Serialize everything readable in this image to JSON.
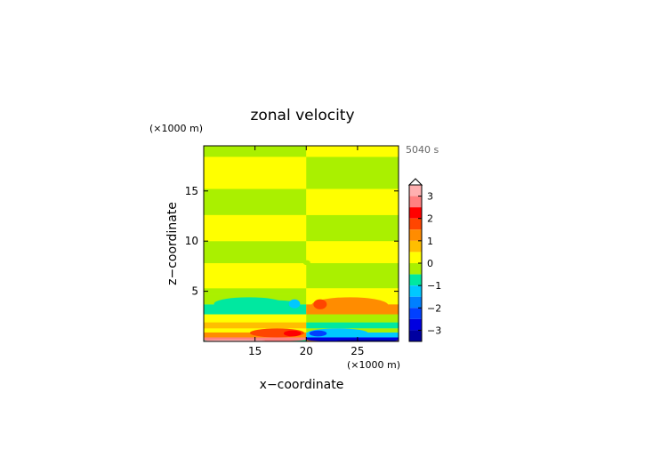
{
  "chart_data": {
    "type": "heatmap",
    "title": "zonal velocity",
    "xlabel": "x−coordinate",
    "ylabel": "z−coordinate",
    "x_unit": "(×1000 m)",
    "y_unit": "(×1000 m)",
    "time_label": "5040 s",
    "xlim": [
      10,
      29
    ],
    "ylim": [
      0,
      19.5
    ],
    "x_ticks": [
      15,
      20,
      25
    ],
    "y_ticks": [
      5,
      10,
      15
    ],
    "x_tick_labels": [
      "15",
      "20",
      "25"
    ],
    "y_tick_labels": [
      "5",
      "10",
      "15"
    ],
    "colorbar": {
      "ticks": [
        3,
        2,
        1,
        0,
        -1,
        -2,
        -3
      ],
      "tick_labels": [
        "3",
        "2",
        "1",
        "0",
        "−1",
        "−2",
        "−3"
      ],
      "range": [
        -3.5,
        3.5
      ],
      "extend": "max",
      "levels": [
        {
          "value": 3.25,
          "color": "#ffb0b0"
        },
        {
          "value": 2.75,
          "color": "#ff8080"
        },
        {
          "value": 2.25,
          "color": "#ff0000"
        },
        {
          "value": 1.75,
          "color": "#ff4500"
        },
        {
          "value": 1.25,
          "color": "#ff8c00"
        },
        {
          "value": 0.75,
          "color": "#ffbe00"
        },
        {
          "value": 0.25,
          "color": "#ffff00"
        },
        {
          "value": -0.25,
          "color": "#aaf000"
        },
        {
          "value": -0.75,
          "color": "#00e8a0"
        },
        {
          "value": -1.25,
          "color": "#00c8ff"
        },
        {
          "value": -1.75,
          "color": "#0080ff"
        },
        {
          "value": -2.25,
          "color": "#0040ff"
        },
        {
          "value": -2.75,
          "color": "#0000e0"
        },
        {
          "value": -3.25,
          "color": "#0000a0"
        }
      ]
    },
    "bands": [
      {
        "z": [
          0.0,
          0.15
        ],
        "left": -1.0,
        "right": 1.0
      },
      {
        "z": [
          0.15,
          0.4
        ],
        "left": 2.5,
        "right": -2.8
      },
      {
        "z": [
          0.4,
          0.9
        ],
        "left": 1.0,
        "right": -1.5
      },
      {
        "z": [
          0.9,
          1.3
        ],
        "left": 0.3,
        "right": -0.3
      },
      {
        "z": [
          1.3,
          1.9
        ],
        "left": 0.7,
        "right": -0.7
      },
      {
        "z": [
          1.9,
          2.7
        ],
        "left": 0.3,
        "right": -0.3
      },
      {
        "z": [
          2.7,
          3.7
        ],
        "left": -1.0,
        "right": 1.0
      },
      {
        "z": [
          3.7,
          4.7
        ],
        "left": -0.3,
        "right": 0.3
      },
      {
        "z": [
          4.7,
          5.3
        ],
        "left": -0.3,
        "right": 0.3
      },
      {
        "z": [
          5.3,
          7.8
        ],
        "left": 0.3,
        "right": -0.3
      },
      {
        "z": [
          7.8,
          10.0
        ],
        "left": -0.3,
        "right": 0.3
      },
      {
        "z": [
          10.0,
          12.6
        ],
        "left": 0.3,
        "right": -0.3
      },
      {
        "z": [
          12.6,
          15.2
        ],
        "left": -0.3,
        "right": 0.3
      },
      {
        "z": [
          15.2,
          18.4
        ],
        "left": 0.3,
        "right": -0.3
      },
      {
        "z": [
          18.4,
          19.5
        ],
        "left": -0.3,
        "right": 0.3
      }
    ],
    "blobs": [
      {
        "x": [
          11,
          17.8
        ],
        "z": [
          3.1,
          4.4
        ],
        "value": -1.0
      },
      {
        "x": [
          10,
          19.6
        ],
        "z": [
          2.8,
          3.8
        ],
        "value": -1.0
      },
      {
        "x": [
          15,
          19.3
        ],
        "z": [
          3.3,
          4.1
        ],
        "value": -1.0
      },
      {
        "x": [
          18.3,
          19.4
        ],
        "z": [
          3.3,
          4.2
        ],
        "value": -1.5
      },
      {
        "x": [
          20.5,
          28
        ],
        "z": [
          2.8,
          4.4
        ],
        "value": 1.0
      },
      {
        "x": [
          20.4,
          29
        ],
        "z": [
          2.8,
          3.8
        ],
        "value": 1.0
      },
      {
        "x": [
          20.7,
          22.0
        ],
        "z": [
          3.2,
          4.2
        ],
        "value": 1.5
      },
      {
        "x": [
          14.5,
          19.8
        ],
        "z": [
          0.4,
          1.3
        ],
        "value": 1.5
      },
      {
        "x": [
          17.8,
          19.5
        ],
        "z": [
          0.5,
          1.1
        ],
        "value": 2.0
      },
      {
        "x": [
          20.1,
          26
        ],
        "z": [
          0.4,
          1.3
        ],
        "value": -1.5
      },
      {
        "x": [
          20.3,
          22.0
        ],
        "z": [
          0.5,
          1.1
        ],
        "value": -2.2
      },
      {
        "x": [
          10,
          19.8
        ],
        "z": [
          0.0,
          0.3
        ],
        "value": 2.5
      },
      {
        "x": [
          10,
          16
        ],
        "z": [
          0.0,
          0.18
        ],
        "value": 3.0
      },
      {
        "x": [
          20.1,
          29
        ],
        "z": [
          0.0,
          0.3
        ],
        "value": -2.8
      },
      {
        "x": [
          23,
          29
        ],
        "z": [
          0.0,
          0.18
        ],
        "value": -3.3
      },
      {
        "x": [
          19.7,
          20.4
        ],
        "z": [
          7.6,
          8.1
        ],
        "value": -0.3
      }
    ]
  }
}
